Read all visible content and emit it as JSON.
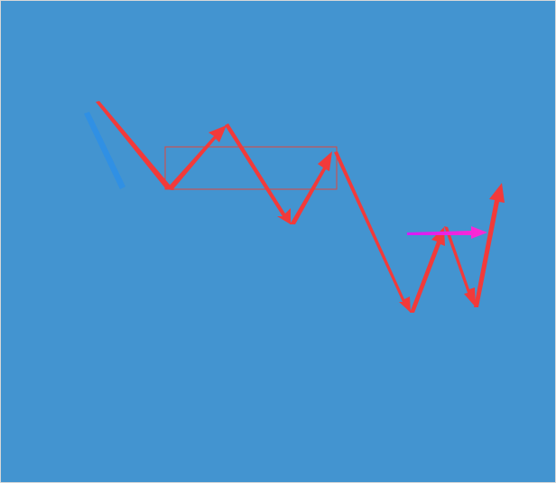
{
  "diagram": {
    "background": "#4394D0",
    "border_color": "#D8D8D8",
    "colors": {
      "main_arrow": "#F23A3A",
      "range_box": "#E2463C",
      "faded_arrow": "#2F8FE6",
      "target_arrow_start": "#D81BF7",
      "target_arrow_end": "#FF2AD0"
    },
    "elements": [
      "faded-down-arrow",
      "price-leg-arrows",
      "consolidation-range-box",
      "breakout-target-arrow"
    ]
  }
}
